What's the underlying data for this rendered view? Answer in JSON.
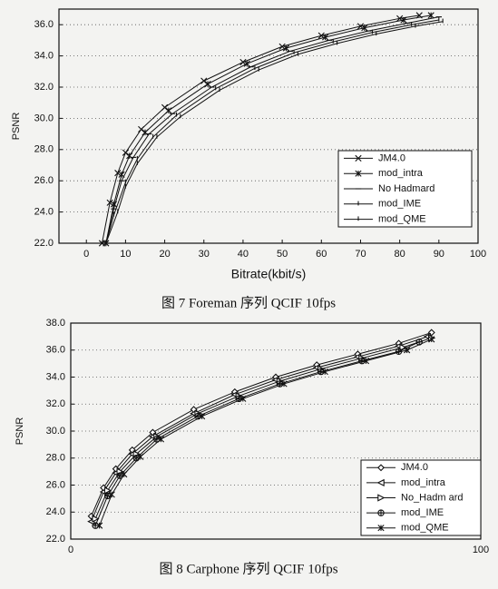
{
  "chart_data": [
    {
      "type": "line",
      "title": "图 7 Foreman 序列 QCIF 10fps",
      "x_label": "Bitrate(kbit/s)",
      "y_label": "PSNR",
      "xlim": [
        -7,
        100
      ],
      "xticks": [
        0,
        10,
        20,
        30,
        40,
        50,
        60,
        70,
        80,
        90,
        100
      ],
      "ylim": [
        22,
        37
      ],
      "yticks": [
        {
          "value": 22,
          "label": "22.0"
        },
        {
          "value": 24,
          "label": "24.0"
        },
        {
          "value": 26,
          "label": "26.0"
        },
        {
          "value": 28,
          "label": "28.0"
        },
        {
          "value": 30,
          "label": "30.0"
        },
        {
          "value": 32,
          "label": "32.0"
        },
        {
          "value": 34,
          "label": "34.0"
        },
        {
          "value": 36,
          "label": "36.0"
        }
      ],
      "grid": true,
      "legend": "lower right",
      "series": [
        {
          "name": "JM4.0",
          "color": "#111111",
          "marker": "x",
          "x": [
            4,
            6,
            8,
            10,
            14,
            20,
            30,
            40,
            50,
            60,
            70,
            80,
            85
          ],
          "values": [
            22,
            24.6,
            26.5,
            27.8,
            29.3,
            30.7,
            32.4,
            33.6,
            34.6,
            35.3,
            35.9,
            36.4,
            36.6
          ]
        },
        {
          "name": "mod_intra",
          "color": "#111111",
          "marker": "star",
          "x": [
            5,
            7,
            9,
            11,
            15,
            21,
            31,
            41,
            51,
            61,
            71,
            81,
            88
          ],
          "values": [
            22,
            24.5,
            26.4,
            27.6,
            29.1,
            30.5,
            32.2,
            33.5,
            34.5,
            35.2,
            35.8,
            36.3,
            36.6
          ]
        },
        {
          "name": "No Hadmard",
          "color": "#111111",
          "marker": "dash",
          "x": [
            5,
            7,
            9,
            12,
            16,
            22,
            32,
            42,
            52,
            62,
            72,
            82,
            90
          ],
          "values": [
            22,
            24.2,
            26,
            27.5,
            29,
            30.3,
            32,
            33.3,
            34.3,
            35,
            35.6,
            36.1,
            36.5
          ]
        },
        {
          "name": "mod_IME",
          "color": "#111111",
          "marker": "tick",
          "x": [
            5,
            7,
            10,
            13,
            17,
            23,
            33,
            43,
            53,
            63,
            73,
            83,
            90
          ],
          "values": [
            22,
            23.8,
            25.9,
            27.4,
            28.8,
            30.2,
            31.9,
            33.2,
            34.2,
            34.9,
            35.5,
            36,
            36.3
          ]
        },
        {
          "name": "mod_QME",
          "color": "#111111",
          "marker": "tick",
          "x": [
            5,
            8,
            10,
            13,
            18,
            24,
            34,
            44,
            54,
            64,
            74,
            84,
            91
          ],
          "values": [
            22,
            24,
            25.6,
            27.1,
            28.8,
            30.1,
            31.8,
            33.1,
            34.1,
            34.8,
            35.4,
            35.9,
            36.2
          ]
        }
      ]
    },
    {
      "type": "line",
      "title": "图 8 Carphone 序列 QCIF 10fps",
      "y_label": "PSNR",
      "xlim": [
        0,
        100
      ],
      "xticks": [
        0,
        100
      ],
      "ylim": [
        22,
        38
      ],
      "yticks": [
        {
          "value": 22,
          "label": "22.0"
        },
        {
          "value": 24,
          "label": "24.0"
        },
        {
          "value": 26,
          "label": "26.0"
        },
        {
          "value": 28,
          "label": "28.0"
        },
        {
          "value": 30,
          "label": "30.0"
        },
        {
          "value": 32,
          "label": "32.0"
        },
        {
          "value": 34,
          "label": "34.0"
        },
        {
          "value": 36,
          "label": "36.0"
        },
        {
          "value": 38,
          "label": "38.0"
        }
      ],
      "grid": true,
      "legend": "lower right",
      "series": [
        {
          "name": "JM4.0",
          "color": "#111111",
          "marker": "diamond",
          "x": [
            5,
            8,
            11,
            15,
            20,
            30,
            40,
            50,
            60,
            70,
            80,
            88
          ],
          "values": [
            23.7,
            25.8,
            27.2,
            28.6,
            29.9,
            31.6,
            32.9,
            34,
            34.9,
            35.7,
            36.5,
            37.3
          ]
        },
        {
          "name": "mod_intra",
          "color": "#111111",
          "marker": "triangle-left",
          "x": [
            5,
            8,
            11,
            15,
            20,
            30,
            40,
            50,
            60,
            70,
            80,
            87
          ],
          "values": [
            23.3,
            25.5,
            26.9,
            28.3,
            29.6,
            31.3,
            32.7,
            33.8,
            34.7,
            35.5,
            36.3,
            37
          ]
        },
        {
          "name": "No_Hadm ard",
          "color": "#111111",
          "marker": "triangle-right",
          "x": [
            6,
            9,
            12,
            16,
            21,
            31,
            41,
            51,
            61,
            71,
            81,
            88
          ],
          "values": [
            23.5,
            25.6,
            27,
            28.3,
            29.6,
            31.3,
            32.6,
            33.7,
            34.6,
            35.4,
            36.2,
            36.9
          ]
        },
        {
          "name": "mod_IME",
          "color": "#111111",
          "marker": "circle-plus",
          "x": [
            6,
            9,
            12,
            16,
            21,
            31,
            41,
            51,
            61,
            71,
            80,
            85
          ],
          "values": [
            23,
            25.2,
            26.7,
            28,
            29.4,
            31.1,
            32.4,
            33.5,
            34.4,
            35.2,
            35.9,
            36.6
          ]
        },
        {
          "name": "mod_QME",
          "color": "#111111",
          "marker": "star",
          "x": [
            7,
            10,
            13,
            17,
            22,
            32,
            42,
            52,
            62,
            72,
            82,
            88
          ],
          "values": [
            23,
            25.3,
            26.8,
            28.1,
            29.4,
            31.1,
            32.4,
            33.5,
            34.4,
            35.2,
            36,
            36.8
          ]
        }
      ]
    }
  ]
}
